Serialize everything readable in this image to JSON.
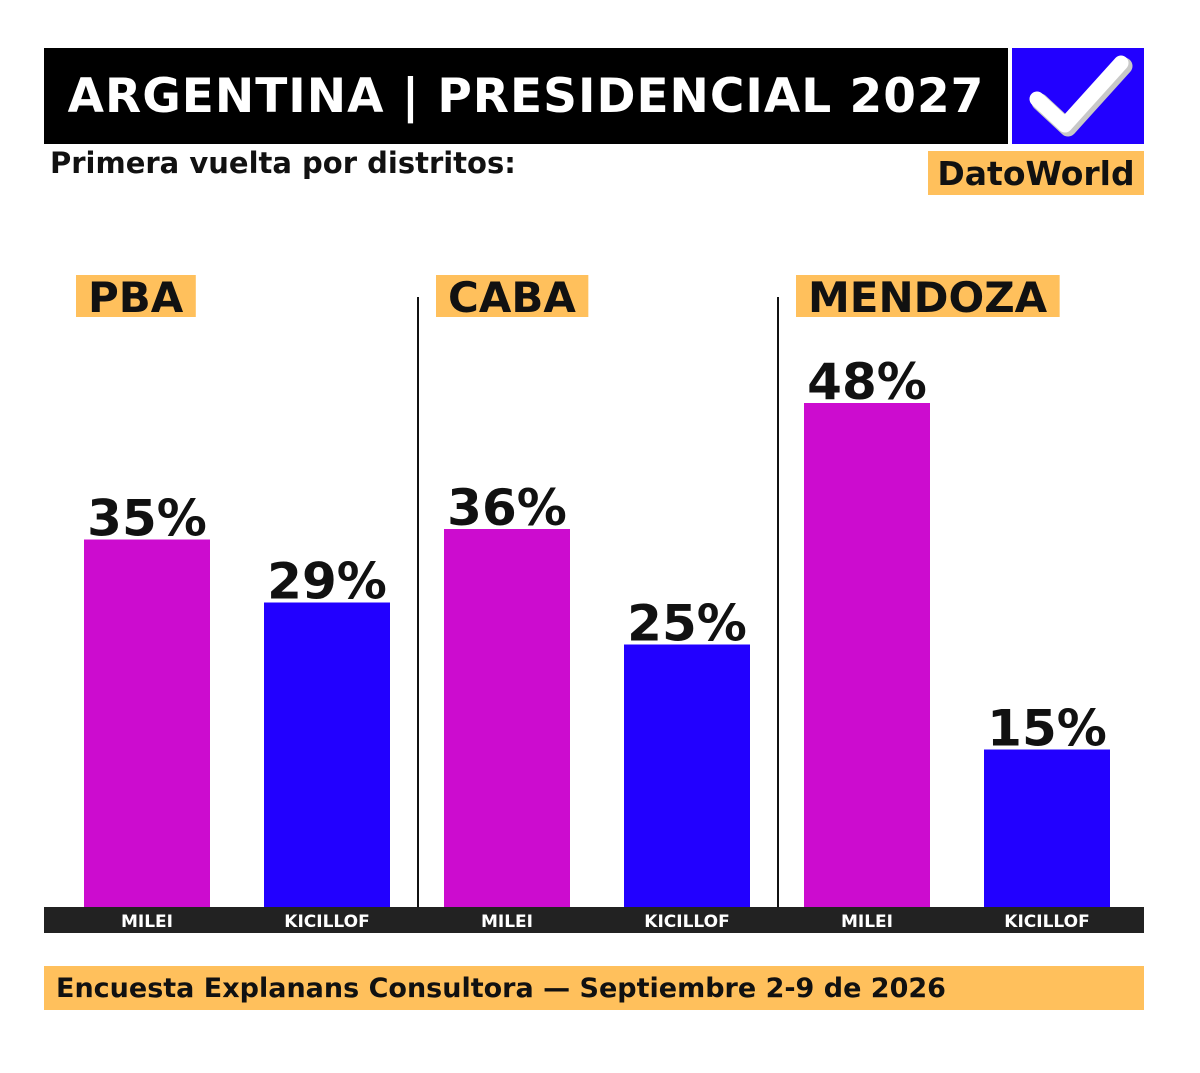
{
  "header": {
    "title": "ARGENTINA | PRESIDENCIAL 2027",
    "subtitle": "Primera vuelta por distritos:",
    "brand": "DatoWorld"
  },
  "footer": {
    "source": "Encuesta Explanans Consultora —  Septiembre 2-9 de 2026"
  },
  "icons": {
    "badge": "checkmark-icon"
  },
  "colors": {
    "title_bar": "#000000",
    "check_badge": "#2200ff",
    "highlight": "#ffc05c",
    "milei": "#cc0ccf",
    "kicillof": "#2200ff",
    "baseline": "#222222"
  },
  "chart_data": {
    "type": "bar",
    "title": "",
    "xlabel": "",
    "ylabel": "",
    "ylim": [
      0,
      50
    ],
    "grid": false,
    "value_format": "percent",
    "groups": [
      {
        "name": "PBA",
        "bars": [
          {
            "label": "MILEI",
            "value": 35,
            "value_label": "35%"
          },
          {
            "label": "KICILLOF",
            "value": 29,
            "value_label": "29%"
          }
        ]
      },
      {
        "name": "CABA",
        "bars": [
          {
            "label": "MILEI",
            "value": 36,
            "value_label": "36%"
          },
          {
            "label": "KICILLOF",
            "value": 25,
            "value_label": "25%"
          }
        ]
      },
      {
        "name": "MENDOZA",
        "bars": [
          {
            "label": "MILEI",
            "value": 48,
            "value_label": "48%"
          },
          {
            "label": "KICILLOF",
            "value": 15,
            "value_label": "15%"
          }
        ]
      }
    ]
  }
}
